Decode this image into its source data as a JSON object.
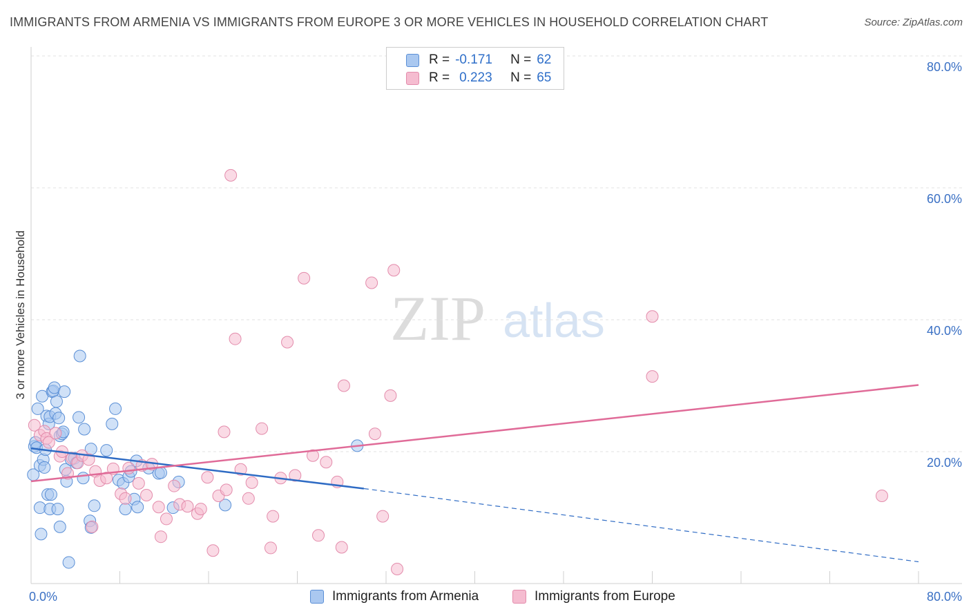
{
  "title": "IMMIGRANTS FROM ARMENIA VS IMMIGRANTS FROM EUROPE 3 OR MORE VEHICLES IN HOUSEHOLD CORRELATION CHART",
  "source": "Source: ZipAtlas.com",
  "watermark": {
    "zip": "ZIP",
    "atlas": "atlas"
  },
  "legend": {
    "armenia": {
      "r_label": "R =",
      "r_value": "-0.171",
      "n_label": "N =",
      "n_value": "62"
    },
    "europe": {
      "r_label": "R =",
      "r_value": "0.223",
      "n_label": "N =",
      "n_value": "65"
    }
  },
  "colors": {
    "armenia_fill": "#aac8f0",
    "armenia_stroke": "#5a8fd6",
    "armenia_line": "#2e6bc4",
    "europe_fill": "#f5bcd0",
    "europe_stroke": "#e38bab",
    "europe_line": "#e06b98",
    "axis_text": "#3a70c4"
  },
  "chart_data": {
    "type": "scatter",
    "title": "IMMIGRANTS FROM ARMENIA VS IMMIGRANTS FROM EUROPE 3 OR MORE VEHICLES IN HOUSEHOLD CORRELATION CHART",
    "xlabel": "",
    "ylabel": "3 or more Vehicles in Household",
    "xlim": [
      0,
      82
    ],
    "ylim": [
      0,
      82
    ],
    "x_tick_labels": [
      {
        "value": 0,
        "label": "0.0%"
      },
      {
        "value": 80,
        "label": "80.0%"
      }
    ],
    "y_tick_labels": [
      {
        "value": 20,
        "label": "20.0%"
      },
      {
        "value": 40,
        "label": "40.0%"
      },
      {
        "value": 60,
        "label": "60.0%"
      },
      {
        "value": 80,
        "label": "80.0%"
      }
    ],
    "grid": true,
    "series": [
      {
        "name": "Immigrants from Armenia",
        "trend": {
          "x0": 0,
          "y0": 20.5,
          "x1": 30,
          "y1": 14.4,
          "dash_to_x": 80,
          "dash_to_y": 3.3
        },
        "points": [
          [
            0.2,
            16.5
          ],
          [
            0.3,
            20.8
          ],
          [
            0.4,
            21.4
          ],
          [
            0.5,
            20.6
          ],
          [
            0.6,
            26.5
          ],
          [
            0.8,
            11.5
          ],
          [
            0.8,
            17.9
          ],
          [
            0.9,
            7.5
          ],
          [
            1.0,
            28.4
          ],
          [
            1.1,
            18.8
          ],
          [
            1.2,
            17.6
          ],
          [
            1.3,
            20.3
          ],
          [
            1.4,
            25.4
          ],
          [
            1.5,
            13.5
          ],
          [
            1.6,
            24.2
          ],
          [
            1.7,
            25.3
          ],
          [
            1.7,
            11.3
          ],
          [
            1.8,
            13.5
          ],
          [
            1.9,
            29.1
          ],
          [
            2.0,
            29.2
          ],
          [
            2.1,
            29.7
          ],
          [
            2.2,
            25.8
          ],
          [
            2.3,
            27.6
          ],
          [
            2.4,
            11.3
          ],
          [
            2.5,
            25.1
          ],
          [
            2.6,
            8.6
          ],
          [
            2.6,
            22.4
          ],
          [
            2.8,
            22.7
          ],
          [
            2.9,
            23.0
          ],
          [
            3.0,
            29.1
          ],
          [
            3.1,
            17.3
          ],
          [
            3.2,
            15.5
          ],
          [
            3.4,
            3.2
          ],
          [
            3.6,
            18.8
          ],
          [
            3.9,
            19.0
          ],
          [
            4.1,
            18.3
          ],
          [
            4.3,
            25.2
          ],
          [
            4.4,
            34.5
          ],
          [
            4.7,
            16.0
          ],
          [
            4.8,
            23.4
          ],
          [
            5.3,
            9.5
          ],
          [
            5.4,
            8.5
          ],
          [
            5.4,
            20.4
          ],
          [
            5.7,
            11.8
          ],
          [
            6.8,
            20.2
          ],
          [
            7.3,
            24.2
          ],
          [
            7.6,
            26.5
          ],
          [
            7.9,
            15.7
          ],
          [
            8.3,
            15.2
          ],
          [
            8.5,
            11.3
          ],
          [
            8.8,
            16.2
          ],
          [
            9.0,
            17.0
          ],
          [
            9.3,
            12.8
          ],
          [
            9.5,
            18.6
          ],
          [
            9.6,
            11.6
          ],
          [
            10.6,
            17.5
          ],
          [
            11.5,
            16.7
          ],
          [
            11.7,
            16.8
          ],
          [
            12.8,
            11.5
          ],
          [
            13.3,
            15.4
          ],
          [
            17.5,
            11.9
          ],
          [
            29.4,
            20.9
          ]
        ]
      },
      {
        "name": "Immigrants from Europe",
        "trend": {
          "x0": 0,
          "y0": 15.5,
          "x1": 80,
          "y1": 30.1
        },
        "points": [
          [
            0.3,
            24.0
          ],
          [
            0.8,
            22.5
          ],
          [
            1.2,
            23.1
          ],
          [
            1.4,
            22.0
          ],
          [
            1.6,
            21.4
          ],
          [
            2.2,
            22.8
          ],
          [
            2.6,
            19.3
          ],
          [
            2.8,
            20.0
          ],
          [
            3.3,
            16.7
          ],
          [
            3.7,
            19.0
          ],
          [
            4.2,
            18.3
          ],
          [
            4.6,
            19.4
          ],
          [
            5.2,
            18.8
          ],
          [
            5.5,
            8.6
          ],
          [
            5.8,
            17.0
          ],
          [
            6.2,
            15.6
          ],
          [
            6.8,
            16.0
          ],
          [
            7.4,
            17.4
          ],
          [
            8.1,
            13.6
          ],
          [
            8.5,
            12.9
          ],
          [
            8.8,
            17.5
          ],
          [
            9.7,
            15.2
          ],
          [
            10.0,
            17.9
          ],
          [
            10.4,
            13.4
          ],
          [
            10.9,
            18.1
          ],
          [
            11.5,
            11.6
          ],
          [
            11.7,
            7.1
          ],
          [
            12.2,
            9.8
          ],
          [
            12.9,
            14.8
          ],
          [
            13.4,
            12.0
          ],
          [
            14.1,
            11.7
          ],
          [
            15.0,
            10.6
          ],
          [
            15.3,
            11.3
          ],
          [
            15.9,
            16.1
          ],
          [
            16.4,
            5.0
          ],
          [
            16.9,
            13.3
          ],
          [
            17.4,
            23.0
          ],
          [
            17.6,
            14.2
          ],
          [
            18.0,
            61.9
          ],
          [
            18.4,
            37.1
          ],
          [
            18.9,
            17.3
          ],
          [
            19.6,
            12.9
          ],
          [
            19.9,
            15.3
          ],
          [
            20.8,
            23.5
          ],
          [
            21.6,
            5.4
          ],
          [
            21.8,
            10.2
          ],
          [
            22.5,
            16.0
          ],
          [
            23.1,
            36.6
          ],
          [
            23.8,
            16.4
          ],
          [
            24.6,
            46.3
          ],
          [
            25.4,
            19.4
          ],
          [
            25.9,
            7.3
          ],
          [
            26.6,
            18.4
          ],
          [
            27.6,
            15.4
          ],
          [
            28.0,
            5.5
          ],
          [
            28.2,
            30.0
          ],
          [
            30.7,
            45.6
          ],
          [
            31.0,
            22.7
          ],
          [
            31.7,
            10.2
          ],
          [
            32.4,
            28.5
          ],
          [
            32.7,
            47.5
          ],
          [
            33.0,
            2.2
          ],
          [
            56.0,
            40.5
          ],
          [
            56.0,
            31.4
          ],
          [
            76.7,
            13.3
          ]
        ]
      }
    ]
  },
  "bottom_legend": {
    "armenia": "Immigrants from Armenia",
    "europe": "Immigrants from Europe"
  }
}
